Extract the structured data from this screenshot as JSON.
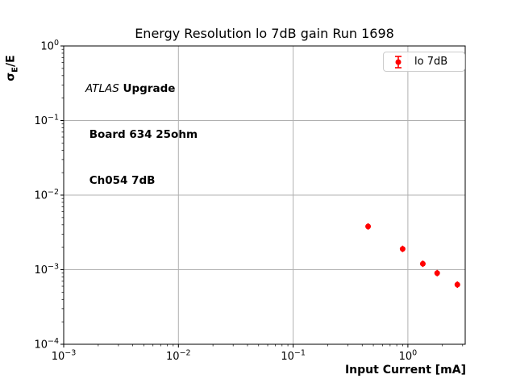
{
  "figure": {
    "title": "Energy Resolution lo 7dB gain Run 1698",
    "background": "#ffffff"
  },
  "axes": {
    "xlabel": "Input Current [mA]",
    "ylabel_sigma": "σ",
    "ylabel_sub": "E",
    "ylabel_rest": "/E"
  },
  "annotation": {
    "experiment": "ATLAS",
    "line1_rest": " Upgrade",
    "line2": " Board 634 25ohm",
    "line3": " Ch054 7dB"
  },
  "legend": {
    "label": "lo 7dB",
    "marker_color": "#ff0000"
  },
  "chart_data": {
    "type": "scatter",
    "title": "Energy Resolution lo 7dB gain Run 1698",
    "xlabel": "Input Current [mA]",
    "ylabel": "σ_E/E",
    "xscale": "log",
    "yscale": "log",
    "xlim": [
      0.001,
      3.16
    ],
    "ylim": [
      0.0001,
      1.0
    ],
    "grid": true,
    "grid_color": "#b0b0b0",
    "legend_position": "upper right",
    "x_tick_exponents": [
      -3,
      -2,
      -1,
      0
    ],
    "y_tick_exponents": [
      -4,
      -3,
      -2,
      -1,
      0
    ],
    "series": [
      {
        "name": "lo 7dB",
        "color": "#ff0000",
        "marker": "circle",
        "error_bars": true,
        "x": [
          0.45,
          0.9,
          1.35,
          1.8,
          2.7
        ],
        "y": [
          0.0038,
          0.0019,
          0.0012,
          0.0009,
          0.00063
        ]
      }
    ]
  }
}
